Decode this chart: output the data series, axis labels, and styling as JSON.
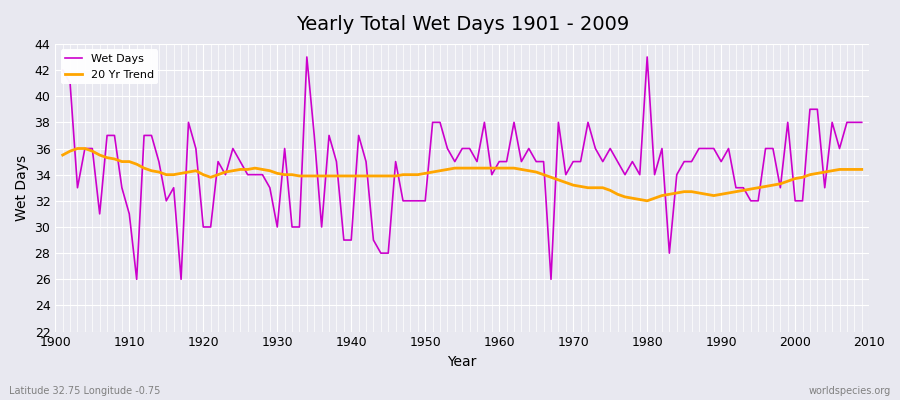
{
  "title": "Yearly Total Wet Days 1901 - 2009",
  "xlabel": "Year",
  "ylabel": "Wet Days",
  "subtitle": "Latitude 32.75 Longitude -0.75",
  "watermark": "worldspecies.org",
  "legend_labels": [
    "Wet Days",
    "20 Yr Trend"
  ],
  "wet_days_color": "#cc00cc",
  "trend_color": "#ffa500",
  "bg_color": "#e8e8f0",
  "grid_color": "#ffffff",
  "ylim": [
    22,
    44
  ],
  "years": [
    1901,
    1902,
    1903,
    1904,
    1905,
    1906,
    1907,
    1908,
    1909,
    1910,
    1911,
    1912,
    1913,
    1914,
    1915,
    1916,
    1917,
    1918,
    1919,
    1920,
    1921,
    1922,
    1923,
    1924,
    1925,
    1926,
    1927,
    1928,
    1929,
    1930,
    1931,
    1932,
    1933,
    1934,
    1935,
    1936,
    1937,
    1938,
    1939,
    1940,
    1941,
    1942,
    1943,
    1944,
    1945,
    1946,
    1947,
    1948,
    1949,
    1950,
    1951,
    1952,
    1953,
    1954,
    1955,
    1956,
    1957,
    1958,
    1959,
    1960,
    1961,
    1962,
    1963,
    1964,
    1965,
    1966,
    1967,
    1968,
    1969,
    1970,
    1971,
    1972,
    1973,
    1974,
    1975,
    1976,
    1977,
    1978,
    1979,
    1980,
    1981,
    1982,
    1983,
    1984,
    1985,
    1986,
    1987,
    1988,
    1989,
    1990,
    1991,
    1992,
    1993,
    1994,
    1995,
    1996,
    1997,
    1998,
    1999,
    2000,
    2001,
    2002,
    2003,
    2004,
    2005,
    2006,
    2007,
    2008,
    2009
  ],
  "wet_days": [
    42,
    41,
    33,
    36,
    36,
    31,
    37,
    37,
    33,
    31,
    26,
    37,
    37,
    35,
    32,
    33,
    26,
    38,
    36,
    30,
    30,
    35,
    34,
    36,
    35,
    34,
    34,
    34,
    33,
    30,
    36,
    30,
    30,
    43,
    37,
    30,
    37,
    35,
    29,
    29,
    37,
    35,
    29,
    28,
    28,
    35,
    32,
    32,
    32,
    32,
    38,
    38,
    36,
    35,
    36,
    36,
    35,
    38,
    34,
    35,
    35,
    38,
    35,
    36,
    35,
    35,
    26,
    38,
    34,
    35,
    35,
    38,
    36,
    35,
    36,
    35,
    34,
    35,
    34,
    43,
    34,
    36,
    28,
    34,
    35,
    35,
    36,
    36,
    36,
    35,
    36,
    33,
    33,
    32,
    32,
    36,
    36,
    33,
    38,
    32,
    32,
    39,
    39,
    33,
    38,
    36,
    38,
    38,
    38
  ],
  "trend_years": [
    1901,
    1902,
    1903,
    1904,
    1905,
    1906,
    1907,
    1908,
    1909,
    1910,
    1911,
    1912,
    1913,
    1914,
    1915,
    1916,
    1917,
    1918,
    1919,
    1920,
    1921,
    1922,
    1923,
    1924,
    1925,
    1926,
    1927,
    1928,
    1929,
    1930,
    1931,
    1932,
    1933,
    1934,
    1935,
    1936,
    1937,
    1938,
    1939,
    1940,
    1941,
    1942,
    1943,
    1944,
    1945,
    1946,
    1947,
    1948,
    1949,
    1950,
    1951,
    1952,
    1953,
    1954,
    1955,
    1956,
    1957,
    1958,
    1959,
    1960,
    1961,
    1962,
    1963,
    1964,
    1965,
    1966,
    1967,
    1968,
    1969,
    1970,
    1971,
    1972,
    1973,
    1974,
    1975,
    1976,
    1977,
    1978,
    1979,
    1980,
    1981,
    1982,
    1983,
    1984,
    1985,
    1986,
    1987,
    1988,
    1989,
    1990,
    1991,
    1992,
    1993,
    1994,
    1995,
    1996,
    1997,
    1998,
    1999,
    2000,
    2001,
    2002,
    2003,
    2004,
    2005,
    2006,
    2007,
    2008,
    2009
  ],
  "trend_values": [
    35.5,
    35.8,
    36.0,
    36.0,
    35.8,
    35.5,
    35.3,
    35.2,
    35.0,
    35.0,
    34.8,
    34.5,
    34.3,
    34.2,
    34.0,
    34.0,
    34.1,
    34.2,
    34.3,
    34.0,
    33.8,
    34.0,
    34.2,
    34.3,
    34.4,
    34.4,
    34.5,
    34.4,
    34.3,
    34.1,
    34.0,
    34.0,
    33.9,
    33.9,
    33.9,
    33.9,
    33.9,
    33.9,
    33.9,
    33.9,
    33.9,
    33.9,
    33.9,
    33.9,
    33.9,
    33.9,
    34.0,
    34.0,
    34.0,
    34.1,
    34.2,
    34.3,
    34.4,
    34.5,
    34.5,
    34.5,
    34.5,
    34.5,
    34.5,
    34.5,
    34.5,
    34.5,
    34.4,
    34.3,
    34.2,
    34.0,
    33.8,
    33.6,
    33.4,
    33.2,
    33.1,
    33.0,
    33.0,
    33.0,
    32.8,
    32.5,
    32.3,
    32.2,
    32.1,
    32.0,
    32.2,
    32.4,
    32.5,
    32.6,
    32.7,
    32.7,
    32.6,
    32.5,
    32.4,
    32.5,
    32.6,
    32.7,
    32.8,
    32.9,
    33.0,
    33.1,
    33.2,
    33.3,
    33.5,
    33.7,
    33.8,
    34.0,
    34.1,
    34.2,
    34.3,
    34.4,
    34.4,
    34.4,
    34.4
  ]
}
